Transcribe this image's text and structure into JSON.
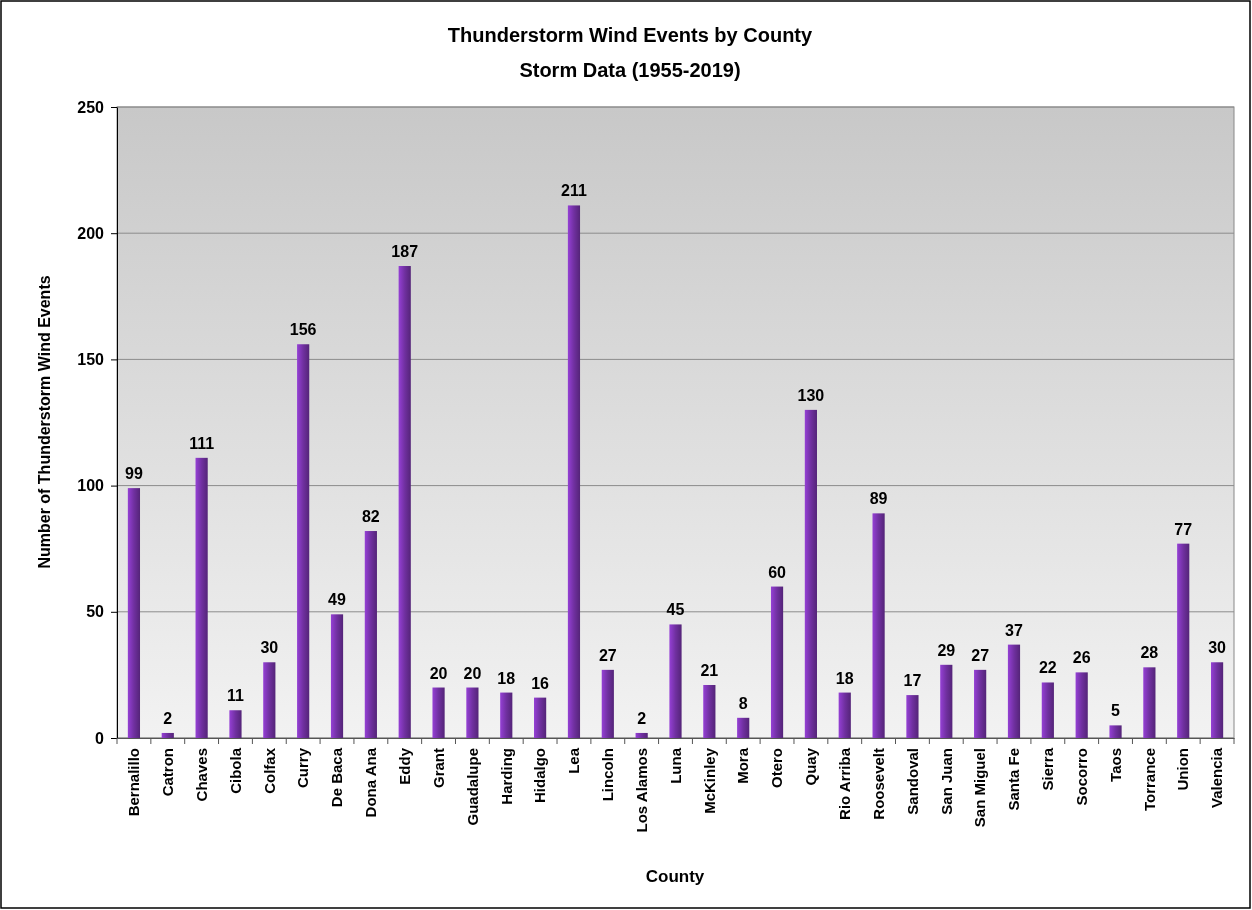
{
  "chart_data": {
    "type": "bar",
    "title": "Thunderstorm Wind Events by County",
    "subtitle": "Storm Data (1955-2019)",
    "xlabel": "County",
    "ylabel": "Number of  Thunderstorm Wind Events",
    "categories": [
      "Bernalillo",
      "Catron",
      "Chaves",
      "Cibola",
      "Colfax",
      "Curry",
      "De Baca",
      "Dona Ana",
      "Eddy",
      "Grant",
      "Guadalupe",
      "Harding",
      "Hidalgo",
      "Lea",
      "Lincoln",
      "Los Alamos",
      "Luna",
      "McKinley",
      "Mora",
      "Otero",
      "Quay",
      "Rio Arriba",
      "Roosevelt",
      "Sandoval",
      "San Juan",
      "San Miguel",
      "Santa Fe",
      "Sierra",
      "Socorro",
      "Taos",
      "Torrance",
      "Union",
      "Valencia"
    ],
    "values": [
      99,
      2,
      111,
      11,
      30,
      156,
      49,
      82,
      187,
      20,
      20,
      18,
      16,
      211,
      27,
      2,
      45,
      21,
      8,
      60,
      130,
      18,
      89,
      17,
      29,
      27,
      37,
      22,
      26,
      5,
      28,
      77,
      30
    ],
    "color": "#7030a0",
    "ylim": [
      0,
      250
    ],
    "yticks": [
      0,
      50,
      100,
      150,
      200,
      250
    ],
    "grid": "y",
    "data_labels": true
  }
}
